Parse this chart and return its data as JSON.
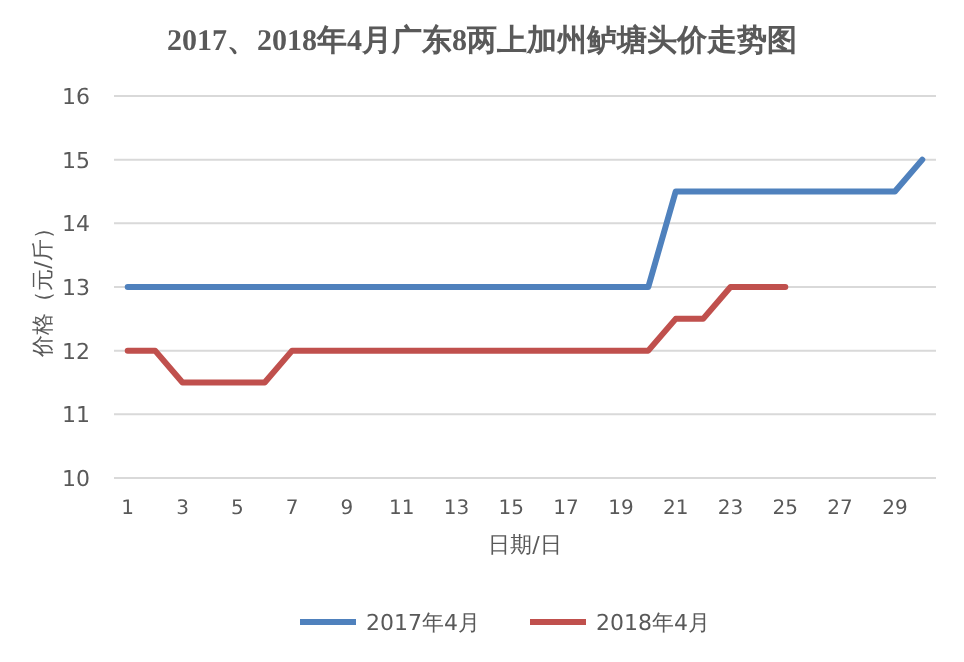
{
  "chart_data": {
    "type": "line",
    "title": "2017、2018年4月广东8两上加州鲈塘头价走势图",
    "xlabel": "日期/日",
    "ylabel": "价格（元/斤）",
    "categories": [
      "1",
      null,
      "3",
      null,
      "5",
      null,
      "7",
      null,
      "9",
      null,
      "11",
      null,
      "13",
      null,
      "15",
      null,
      "17",
      null,
      "19",
      null,
      "21",
      null,
      "23",
      null,
      "25",
      null,
      "27",
      null,
      "29",
      null
    ],
    "series": [
      {
        "name": "2017年4月",
        "color": "#4f81bd",
        "values": [
          13,
          13,
          13,
          13,
          13,
          13,
          13,
          13,
          13,
          13,
          13,
          13,
          13,
          13,
          13,
          13,
          13,
          13,
          13,
          13,
          14.5,
          14.5,
          14.5,
          14.5,
          14.5,
          14.5,
          14.5,
          14.5,
          14.5,
          15
        ]
      },
      {
        "name": "2018年4月",
        "color": "#c0504d",
        "values": [
          12,
          12,
          11.5,
          11.5,
          11.5,
          11.5,
          12,
          12,
          12,
          12,
          12,
          12,
          12,
          12,
          12,
          12,
          12,
          12,
          12,
          12,
          12.5,
          12.5,
          13,
          13,
          13,
          null,
          null,
          null,
          null,
          null
        ]
      }
    ],
    "ylim": [
      10,
      16
    ],
    "yticks": [
      10,
      11,
      12,
      13,
      14,
      15,
      16
    ],
    "grid": "y",
    "legend": "bottom",
    "marker": "none",
    "line_style": "solid"
  }
}
